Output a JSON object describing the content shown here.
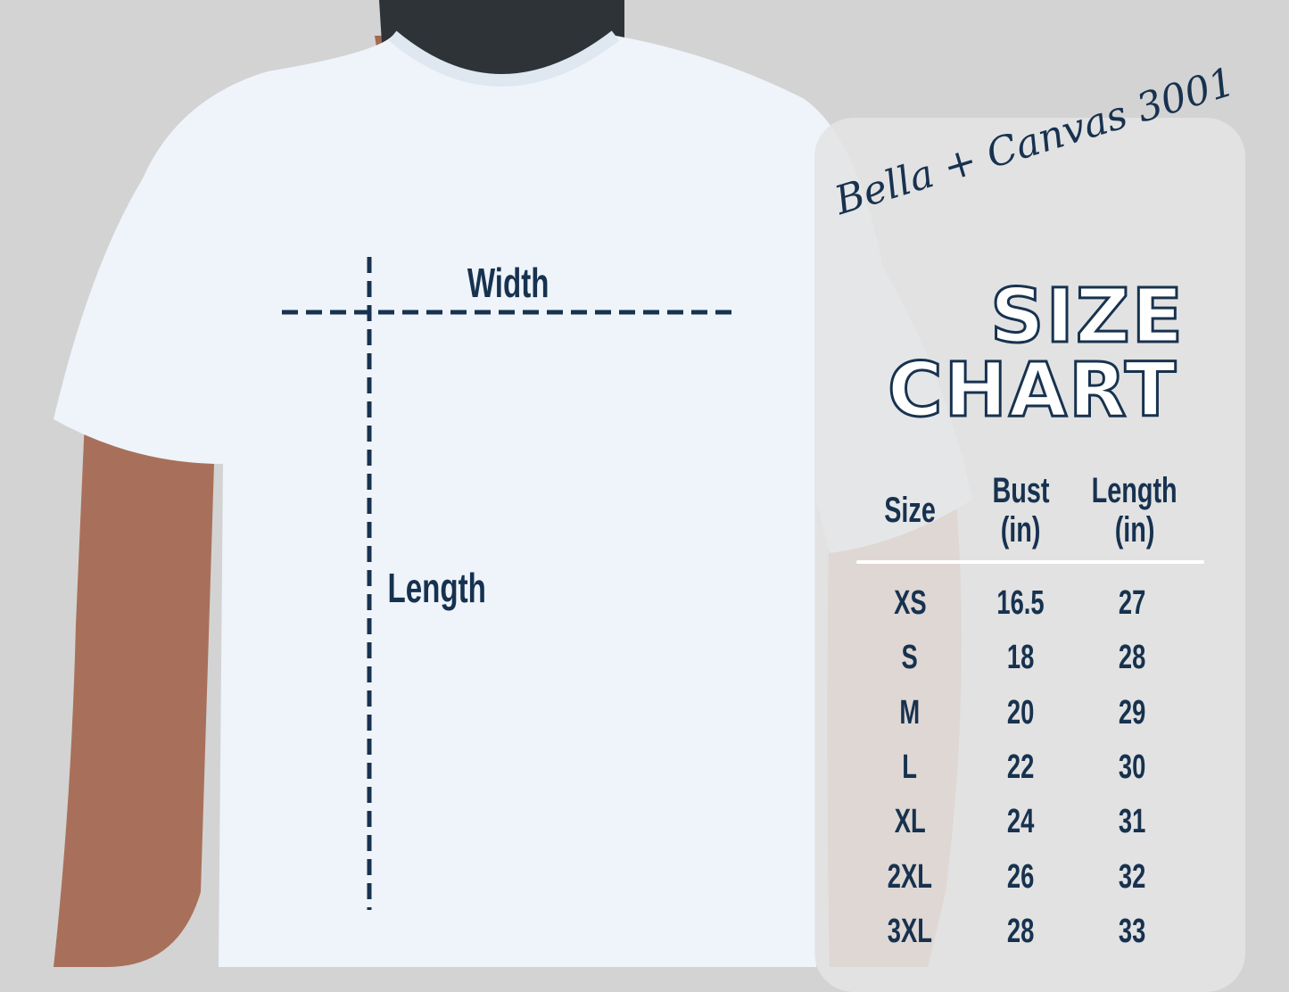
{
  "brand": "Bella + Canvas 3001",
  "title_line1": "SIZE",
  "title_line2": "CHART",
  "shirt_labels": {
    "width": "Width",
    "length": "Length"
  },
  "colors": {
    "text": "#17324f",
    "background": "#d3d3d3",
    "shirt": "#eef4fa"
  },
  "table": {
    "headers": [
      {
        "line1": "Size",
        "line2": ""
      },
      {
        "line1": "Bust",
        "line2": "(in)"
      },
      {
        "line1": "Length",
        "line2": "(in)"
      }
    ],
    "rows": [
      [
        "XS",
        "16.5",
        "27"
      ],
      [
        "S",
        "18",
        "28"
      ],
      [
        "M",
        "20",
        "29"
      ],
      [
        "L",
        "22",
        "30"
      ],
      [
        "XL",
        "24",
        "31"
      ],
      [
        "2XL",
        "26",
        "32"
      ],
      [
        "3XL",
        "28",
        "33"
      ]
    ]
  }
}
